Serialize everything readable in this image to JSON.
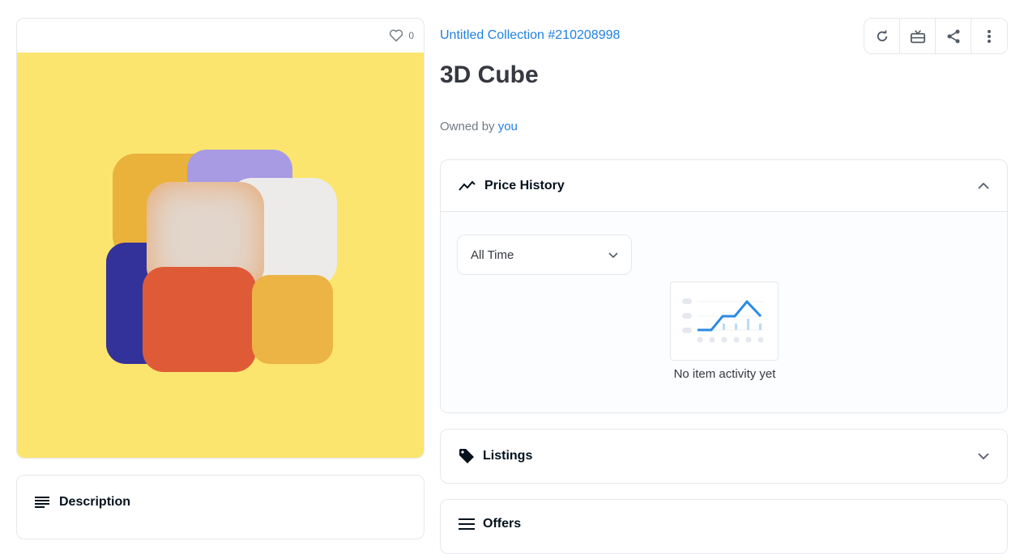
{
  "item": {
    "likes": "0",
    "collection": "Untitled Collection #210208998",
    "title": "3D Cube",
    "owned_by_label": "Owned by",
    "owner": "you"
  },
  "colors": {
    "accent": "#2081e2",
    "image_bg": "#fbe56e"
  },
  "toolbar": {
    "icons": [
      "refresh-icon",
      "gift-icon",
      "share-icon",
      "more-icon"
    ]
  },
  "price_history": {
    "title": "Price History",
    "range": "All Time",
    "empty": "No item activity yet"
  },
  "listings": {
    "title": "Listings"
  },
  "offers": {
    "title": "Offers"
  },
  "description": {
    "title": "Description"
  }
}
